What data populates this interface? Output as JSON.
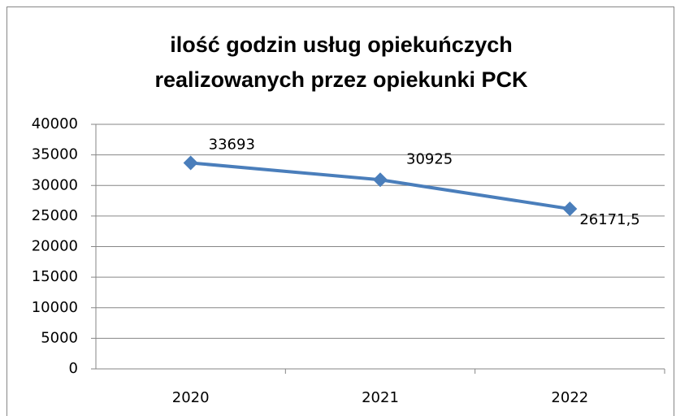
{
  "chart_data": {
    "type": "line",
    "title": [
      "ilość godzin usług opiekuńczych",
      "realizowanych przez opiekunki PCK"
    ],
    "categories": [
      "2020",
      "2021",
      "2022"
    ],
    "series": [
      {
        "name": "ilość godzin",
        "color": "#4a7ebb",
        "values": [
          33693,
          30925,
          26171.5
        ],
        "value_labels": [
          "33693",
          "30925",
          "26171,5"
        ]
      }
    ],
    "ylim": [
      0,
      40000
    ],
    "yticks": [
      0,
      5000,
      10000,
      15000,
      20000,
      25000,
      30000,
      35000,
      40000
    ],
    "grid": true
  }
}
